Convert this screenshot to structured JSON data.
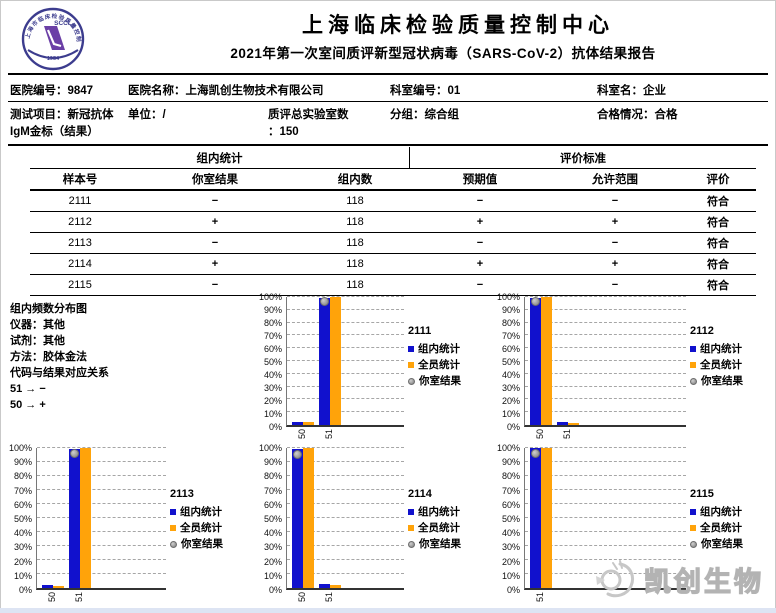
{
  "header": {
    "org_title": "上海临床检验质量控制中心",
    "report_title": "2021年第一次室间质评新型冠状病毒（SARS-CoV-2）抗体结果报告",
    "logo": {
      "abbr": "SCCL",
      "year": "1954",
      "ring_text": "上海市临床检验质量控制中心"
    }
  },
  "info_row1": [
    {
      "label": "医院编号：",
      "value": "9847"
    },
    {
      "label": "医院名称：",
      "value": "上海凯创生物技术有限公司"
    },
    {
      "label": "科室编号：",
      "value": "01"
    },
    {
      "label": "科室名：",
      "value": "企业"
    }
  ],
  "info_row2": {
    "test_item_label": "测试项目：",
    "test_item_value": "新冠抗体",
    "test_item_line2": "IgM金标（结果）",
    "unit_label": "单位：",
    "unit_value": "/",
    "total_labs_label": "质评总实验室数",
    "total_labs_value": "：150",
    "group_label": "分组：",
    "group_value": "综合组",
    "qualify_label": "合格情况：",
    "qualify_value": "合格"
  },
  "table": {
    "group_headers": {
      "left": "组内统计",
      "right": "评价标准"
    },
    "columns": [
      "样本号",
      "你室结果",
      "组内数",
      "预期值",
      "允许范围",
      "评价"
    ],
    "rows": [
      {
        "sample": "2111",
        "your_result": "−",
        "group_count": "118",
        "expected": "−",
        "allowed": "−",
        "evaluation": "符合"
      },
      {
        "sample": "2112",
        "your_result": "+",
        "group_count": "118",
        "expected": "+",
        "allowed": "+",
        "evaluation": "符合"
      },
      {
        "sample": "2113",
        "your_result": "−",
        "group_count": "118",
        "expected": "−",
        "allowed": "−",
        "evaluation": "符合"
      },
      {
        "sample": "2114",
        "your_result": "+",
        "group_count": "118",
        "expected": "+",
        "allowed": "+",
        "evaluation": "符合"
      },
      {
        "sample": "2115",
        "your_result": "−",
        "group_count": "118",
        "expected": "−",
        "allowed": "−",
        "evaluation": "符合"
      }
    ]
  },
  "notes": {
    "title": "组内频数分布图",
    "lines": [
      "仪器：其他",
      "试剂：其他",
      "方法：胶体金法",
      "代码与结果对应关系",
      "51 → −",
      "50 → +"
    ]
  },
  "chart_data": [
    {
      "type": "bar",
      "title": "2111",
      "categories": [
        "50",
        "51"
      ],
      "ylim": [
        0,
        100
      ],
      "ytick_step": 10,
      "grid": "dashed-horizontal",
      "legend_position": "right",
      "series": [
        {
          "name": "组内统计",
          "color": "#1111cd",
          "values": [
            2,
            99
          ]
        },
        {
          "name": "全员统计",
          "color": "#ffa30a",
          "values": [
            2,
            100
          ]
        }
      ],
      "marker": {
        "name": "你室结果",
        "category": "51",
        "value": 96,
        "color": "#9c9c9c"
      }
    },
    {
      "type": "bar",
      "title": "2112",
      "categories": [
        "50",
        "51"
      ],
      "ylim": [
        0,
        100
      ],
      "ytick_step": 10,
      "grid": "dashed-horizontal",
      "legend_position": "right",
      "series": [
        {
          "name": "组内统计",
          "color": "#1111cd",
          "values": [
            99,
            2
          ]
        },
        {
          "name": "全员统计",
          "color": "#ffa30a",
          "values": [
            100,
            1.5
          ]
        }
      ],
      "marker": {
        "name": "你室结果",
        "category": "50",
        "value": 96,
        "color": "#9c9c9c"
      }
    },
    {
      "type": "bar",
      "title": "2113",
      "categories": [
        "50",
        "51"
      ],
      "ylim": [
        0,
        100
      ],
      "ytick_step": 10,
      "grid": "dashed-horizontal",
      "legend_position": "right",
      "series": [
        {
          "name": "组内统计",
          "color": "#1111cd",
          "values": [
            2,
            99
          ]
        },
        {
          "name": "全员统计",
          "color": "#ffa30a",
          "values": [
            1.5,
            100
          ]
        }
      ],
      "marker": {
        "name": "你室结果",
        "category": "51",
        "value": 96,
        "color": "#9c9c9c"
      }
    },
    {
      "type": "bar",
      "title": "2114",
      "categories": [
        "50",
        "51"
      ],
      "ylim": [
        0,
        100
      ],
      "ytick_step": 10,
      "grid": "dashed-horizontal",
      "legend_position": "right",
      "series": [
        {
          "name": "组内统计",
          "color": "#1111cd",
          "values": [
            99,
            3
          ]
        },
        {
          "name": "全员统计",
          "color": "#ffa30a",
          "values": [
            100,
            2
          ]
        }
      ],
      "marker": {
        "name": "你室结果",
        "category": "50",
        "value": 95,
        "color": "#9c9c9c"
      }
    },
    {
      "type": "bar",
      "title": "2115",
      "categories": [
        "51"
      ],
      "ylim": [
        0,
        100
      ],
      "ytick_step": 10,
      "grid": "dashed-horizontal",
      "legend_position": "right",
      "series": [
        {
          "name": "组内统计",
          "color": "#1111cd",
          "values": [
            100
          ]
        },
        {
          "name": "全员统计",
          "color": "#ffa30a",
          "values": [
            100
          ]
        }
      ],
      "marker": {
        "name": "你室结果",
        "category": "51",
        "value": 96,
        "color": "#9c9c9c"
      }
    }
  ],
  "watermark": {
    "text": "凯创生物"
  }
}
